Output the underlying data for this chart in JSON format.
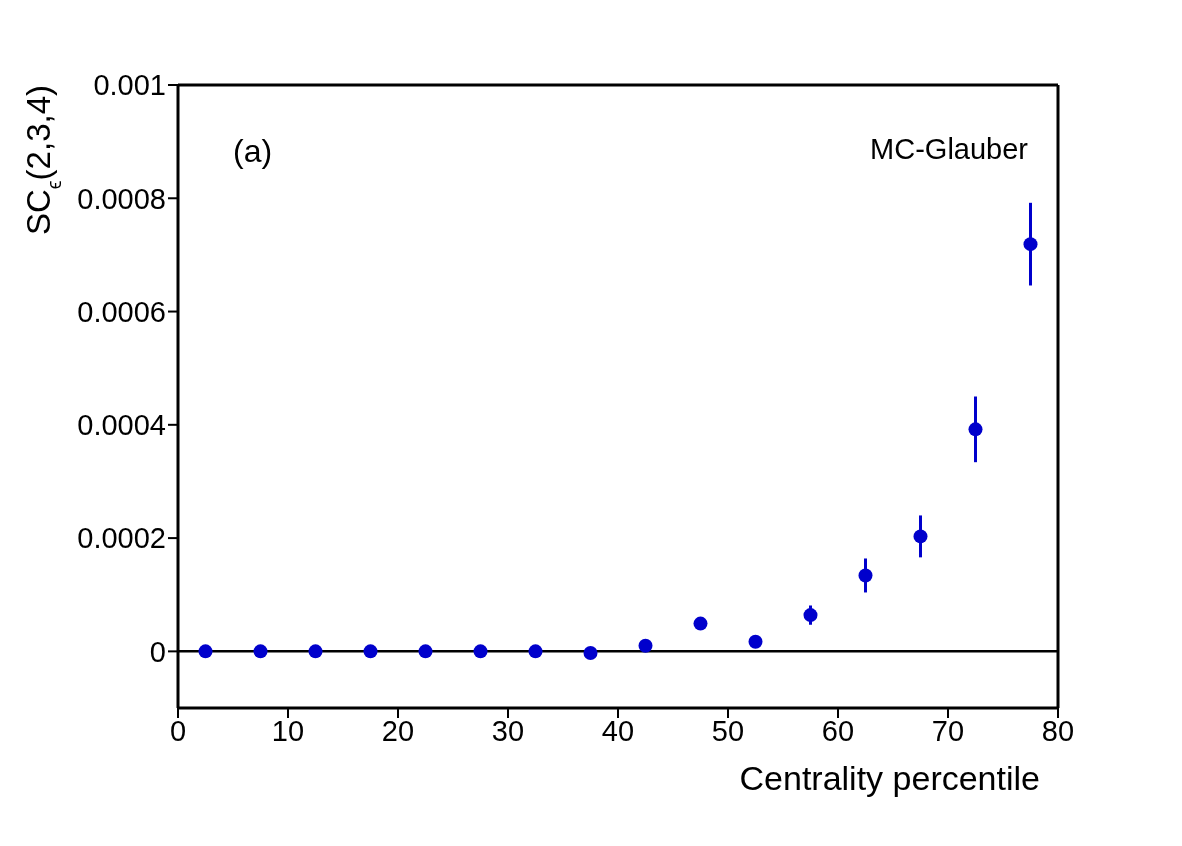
{
  "chart_data": {
    "type": "scatter",
    "xlabel": "Centrality percentile",
    "ylabel": "SC$_{ϵ}$(2,3,4)",
    "annotations": [
      "(a)",
      "MC-Glauber"
    ],
    "x": [
      2.5,
      7.5,
      12.5,
      17.5,
      22.5,
      27.5,
      32.5,
      37.5,
      42.5,
      47.5,
      52.5,
      57.5,
      62.5,
      67.5,
      72.5,
      77.5
    ],
    "series": [
      {
        "color": "#0000cc",
        "values": [
          0,
          0,
          0,
          0,
          0,
          0,
          0,
          -3e-06,
          1e-05,
          4.9e-05,
          1.7e-05,
          6.4e-05,
          0.000134,
          0.000203,
          0.000392,
          0.000719
        ],
        "errors": [
          null,
          null,
          null,
          null,
          null,
          null,
          null,
          null,
          null,
          null,
          null,
          1.7e-05,
          3e-05,
          3.7e-05,
          5.8e-05,
          7.3e-05
        ]
      }
    ],
    "marker": "circle",
    "xlim": [
      0,
      80
    ],
    "xticks": [
      0,
      10,
      20,
      30,
      40,
      50,
      60,
      70,
      80
    ],
    "ylim": [
      -0.0001,
      0.001
    ],
    "yticks": [
      0,
      0.0002,
      0.0004,
      0.0006,
      0.0008,
      0.001
    ],
    "ref_lines": [
      {
        "axis": "y",
        "value": 0,
        "color": "#000000"
      }
    ],
    "grid": false,
    "legend": false
  }
}
